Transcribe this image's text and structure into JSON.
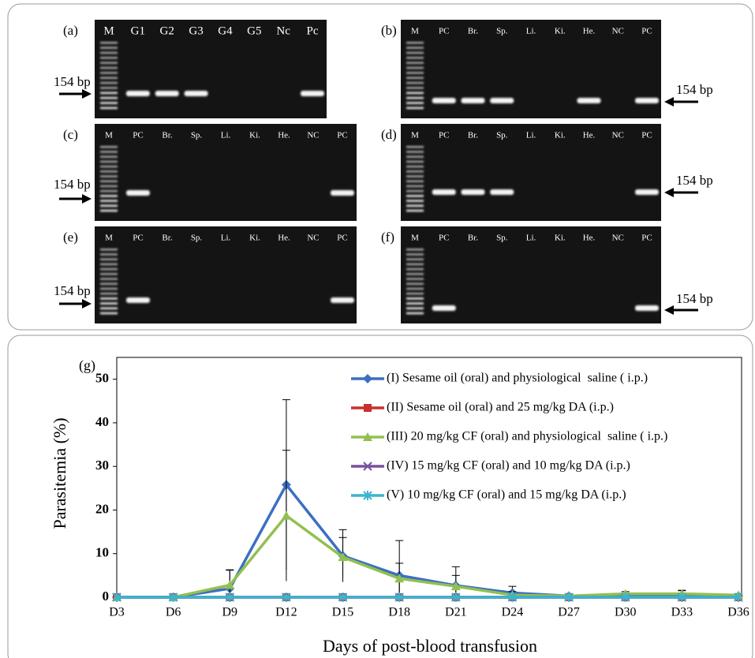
{
  "gels": [
    {
      "label": "(a)",
      "lanes": [
        "M",
        "G1",
        "G2",
        "G3",
        "G4",
        "G5",
        "Nc",
        "Pc"
      ],
      "band_label": "154 bp"
    },
    {
      "label": "(b)",
      "lanes": [
        "M",
        "PC",
        "Br.",
        "Sp.",
        "Li.",
        "Ki.",
        "He.",
        "NC",
        "PC"
      ],
      "band_label": "154 bp"
    },
    {
      "label": "(c)",
      "lanes": [
        "M",
        "PC",
        "Br.",
        "Sp.",
        "Li.",
        "Ki.",
        "He.",
        "NC",
        "PC"
      ],
      "band_label": "154 bp"
    },
    {
      "label": "(d)",
      "lanes": [
        "M",
        "PC",
        "Br.",
        "Sp.",
        "Li.",
        "Ki.",
        "He.",
        "NC",
        "PC"
      ],
      "band_label": "154 bp"
    },
    {
      "label": "(e)",
      "lanes": [
        "M",
        "PC",
        "Br.",
        "Sp.",
        "Li.",
        "Ki.",
        "He.",
        "NC",
        "PC"
      ],
      "band_label": "154 bp"
    },
    {
      "label": "(f)",
      "lanes": [
        "M",
        "PC",
        "Br.",
        "Sp.",
        "Li.",
        "Ki.",
        "He.",
        "NC",
        "PC"
      ],
      "band_label": "154 bp"
    }
  ],
  "chart_data": {
    "type": "line",
    "panel_label": "(g)",
    "y_label": "Parasitemia (%)",
    "x_label": "Days of post-blood transfusion",
    "categories": [
      "D3",
      "D6",
      "D9",
      "D12",
      "D15",
      "D18",
      "D21",
      "D24",
      "D27",
      "D30",
      "D33",
      "D36"
    ],
    "ylim": [
      0,
      55
    ],
    "yticks": [
      0,
      10,
      20,
      30,
      40,
      50
    ],
    "series": [
      {
        "name": "(I) Sesame oil (oral) and physiological  saline ( i.p.)",
        "color": "#3b6fc2",
        "marker": "diamond",
        "values": [
          0,
          0,
          2,
          25.8,
          9.5,
          5,
          2.7,
          1,
          0.3,
          0.5,
          0.5,
          0.3
        ],
        "errors": [
          0,
          0,
          4.2,
          19.5,
          6,
          8,
          4.3,
          1.5,
          0.2,
          0.5,
          1,
          0.3
        ]
      },
      {
        "name": "(II) Sesame oil (oral) and 25 mg/kg DA (i.p.)",
        "color": "#c9302c",
        "marker": "square",
        "values": [
          0,
          0,
          0,
          0,
          0,
          0,
          0,
          0,
          0,
          0,
          0,
          0
        ]
      },
      {
        "name": "(III) 20 mg/kg CF (oral) and physiological  saline ( i.p.)",
        "color": "#92c04f",
        "marker": "triangle",
        "values": [
          0,
          0,
          2.8,
          18.7,
          9.2,
          4.3,
          2.5,
          0.5,
          0.3,
          0.8,
          0.8,
          0.5
        ],
        "errors": [
          0,
          0,
          3.5,
          15,
          4.5,
          3.5,
          2.5,
          0.8,
          0.2,
          0.5,
          0.8,
          0.3
        ]
      },
      {
        "name": "(IV) 15 mg/kg CF (oral) and 10 mg/kg DA (i.p.)",
        "color": "#7a4fa0",
        "marker": "x",
        "values": [
          0,
          0,
          0,
          0,
          0,
          0,
          0,
          0,
          0,
          0,
          0,
          0
        ]
      },
      {
        "name": "(V) 10 mg/kg CF (oral) and 15 mg/kg DA (i.p.)",
        "color": "#3cb4d0",
        "marker": "star",
        "values": [
          0,
          0,
          0,
          0,
          0,
          0,
          0,
          0,
          0,
          0,
          0,
          0
        ]
      }
    ]
  }
}
